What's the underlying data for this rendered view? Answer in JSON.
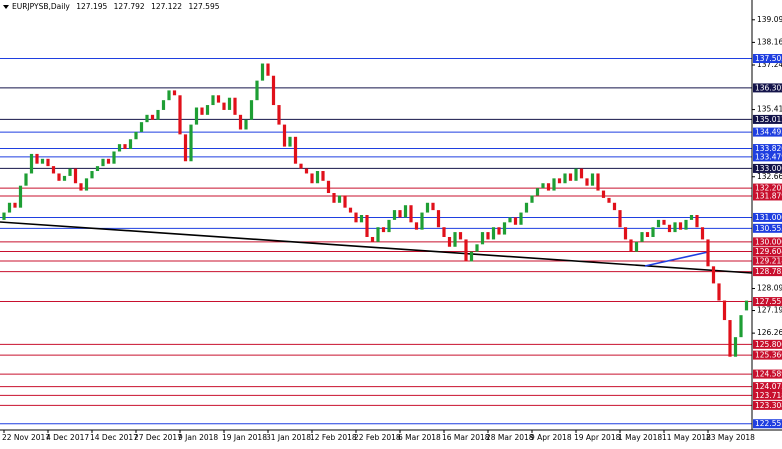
{
  "chart_data": {
    "type": "candlestick",
    "title": "EURJPYSB,Daily",
    "header_values": [
      127.195,
      127.792,
      127.122,
      127.595
    ],
    "up_color": "#1e9e34",
    "down_color": "#e0101a",
    "ylim": [
      122.3,
      139.9
    ],
    "yticks": [
      {
        "value": 139.09,
        "label": "139.090"
      },
      {
        "value": 138.165,
        "label": "138.165"
      },
      {
        "value": 137.24,
        "label": "137.240"
      },
      {
        "value": 135.415,
        "label": "135.415"
      },
      {
        "value": 132.665,
        "label": "132.665"
      },
      {
        "value": 128.09,
        "label": "128.090"
      },
      {
        "value": 127.19,
        "label": "127.190"
      },
      {
        "value": 126.265,
        "label": "126.265"
      }
    ],
    "levels": [
      {
        "value": 137.505,
        "label": "137.505",
        "color": "#1f3fe0"
      },
      {
        "value": 136.302,
        "label": "136.302",
        "color": "#14144a"
      },
      {
        "value": 135.012,
        "label": "135.012",
        "color": "#14144a"
      },
      {
        "value": 134.493,
        "label": "134.493",
        "color": "#1f3fe0"
      },
      {
        "value": 133.82,
        "label": "133.820",
        "color": "#1f3fe0"
      },
      {
        "value": 133.479,
        "label": "133.479",
        "color": "#1f3fe0"
      },
      {
        "value": 133.006,
        "label": "133.006",
        "color": "#14144a"
      },
      {
        "value": 132.202,
        "label": "132.202",
        "color": "#c8102e"
      },
      {
        "value": 131.879,
        "label": "131.879",
        "color": "#c8102e"
      },
      {
        "value": 131.0,
        "label": "131.000",
        "color": "#1f3fe0"
      },
      {
        "value": 130.555,
        "label": "130.555",
        "color": "#1f3fe0"
      },
      {
        "value": 130.0,
        "label": "130.000",
        "color": "#c8102e"
      },
      {
        "value": 129.604,
        "label": "129.604",
        "color": "#c8102e"
      },
      {
        "value": 129.218,
        "label": "129.218",
        "color": "#c8102e"
      },
      {
        "value": 128.783,
        "label": "128.783",
        "color": "#c8102e"
      },
      {
        "value": 127.557,
        "label": "127.557",
        "color": "#c8102e"
      },
      {
        "value": 125.806,
        "label": "125.806",
        "color": "#c8102e"
      },
      {
        "value": 125.366,
        "label": "125.366",
        "color": "#c8102e"
      },
      {
        "value": 124.589,
        "label": "124.589",
        "color": "#c8102e"
      },
      {
        "value": 124.075,
        "label": "124.075",
        "color": "#c8102e"
      },
      {
        "value": 123.718,
        "label": "123.718",
        "color": "#c8102e"
      },
      {
        "value": 123.308,
        "label": "123.308",
        "color": "#c8102e"
      },
      {
        "value": 122.557,
        "label": "122.557",
        "color": "#1f3fe0"
      }
    ],
    "categories": [
      "22 Nov 2017",
      null,
      null,
      null,
      null,
      null,
      null,
      null,
      "4 Dec 2017",
      null,
      null,
      null,
      null,
      null,
      null,
      null,
      "14 Dec 2017",
      null,
      null,
      null,
      null,
      null,
      null,
      null,
      "27 Dec 2017",
      null,
      null,
      null,
      null,
      null,
      null,
      null,
      "9 Jan 2018",
      null,
      null,
      null,
      null,
      null,
      null,
      null,
      "19 Jan 2018",
      null,
      null,
      null,
      null,
      null,
      null,
      null,
      "31 Jan 2018",
      null,
      null,
      null,
      null,
      null,
      null,
      null,
      "12 Feb 2018",
      null,
      null,
      null,
      null,
      null,
      null,
      null,
      "22 Feb 2018",
      null,
      null,
      null,
      null,
      null,
      null,
      null,
      "6 Mar 2018",
      null,
      null,
      null,
      null,
      null,
      null,
      null,
      "16 Mar 2018",
      null,
      null,
      null,
      null,
      null,
      null,
      null,
      "28 Mar 2018",
      null,
      null,
      null,
      null,
      null,
      null,
      null,
      "9 Apr 2018",
      null,
      null,
      null,
      null,
      null,
      null,
      null,
      "19 Apr 2018",
      null,
      null,
      null,
      null,
      null,
      null,
      null,
      "1 May 2018",
      null,
      null,
      null,
      null,
      null,
      null,
      null,
      "11 May 2018",
      null,
      null,
      null,
      null,
      null,
      null,
      null,
      "23 May 2018",
      null,
      null,
      null,
      null,
      null,
      null,
      null
    ],
    "open": [
      130.9,
      131.2,
      131.6,
      131.4,
      132.3,
      132.8,
      133.6,
      133.2,
      133.4,
      133.1,
      132.8,
      132.5,
      132.7,
      133.0,
      132.4,
      132.1,
      132.6,
      132.9,
      133.1,
      133.4,
      133.2,
      133.7,
      134.0,
      133.8,
      134.2,
      134.5,
      134.9,
      135.2,
      135.0,
      135.4,
      135.8,
      136.2,
      136.0,
      134.4,
      133.3,
      134.8,
      135.5,
      135.2,
      135.6,
      136.0,
      135.7,
      135.4,
      135.9,
      135.2,
      134.6,
      135.0,
      135.8,
      136.6,
      137.3,
      136.8,
      135.6,
      134.8,
      133.9,
      134.3,
      133.2,
      133.0,
      132.8,
      132.4,
      132.9,
      132.5,
      132.0,
      131.6,
      131.9,
      131.4,
      131.2,
      130.8,
      131.1,
      130.2,
      130.0,
      130.6,
      130.4,
      130.9,
      131.3,
      131.0,
      131.5,
      130.8,
      130.5,
      131.2,
      131.6,
      131.3,
      130.6,
      130.2,
      129.8,
      130.4,
      130.1,
      129.2,
      129.6,
      129.9,
      130.4,
      130.1,
      130.6,
      130.3,
      130.8,
      131.0,
      130.7,
      131.2,
      131.6,
      131.9,
      132.2,
      132.4,
      132.1,
      132.6,
      132.4,
      132.8,
      132.5,
      133.0,
      132.6,
      132.3,
      132.8,
      132.1,
      131.8,
      131.6,
      131.3,
      130.6,
      130.1,
      129.6,
      130.0,
      130.4,
      130.2,
      130.6,
      130.9,
      130.7,
      130.4,
      130.8,
      130.5,
      130.9,
      131.1,
      130.6,
      130.1,
      129.0,
      128.3,
      127.6,
      126.8,
      125.3,
      126.1,
      127.195
    ],
    "close": [
      131.2,
      131.6,
      131.4,
      132.3,
      132.8,
      133.6,
      133.2,
      133.4,
      133.1,
      132.8,
      132.5,
      132.7,
      133.0,
      132.4,
      132.1,
      132.6,
      132.9,
      133.1,
      133.4,
      133.2,
      133.7,
      134.0,
      133.8,
      134.2,
      134.5,
      134.9,
      135.2,
      135.0,
      135.4,
      135.8,
      136.2,
      136.0,
      134.4,
      133.3,
      134.8,
      135.5,
      135.2,
      135.6,
      136.0,
      135.7,
      135.4,
      135.9,
      135.2,
      134.6,
      135.0,
      135.8,
      136.6,
      137.3,
      136.8,
      135.6,
      134.8,
      133.9,
      134.3,
      133.2,
      133.0,
      132.8,
      132.4,
      132.9,
      132.5,
      132.0,
      131.6,
      131.9,
      131.4,
      131.2,
      130.8,
      131.1,
      130.2,
      130.0,
      130.6,
      130.4,
      130.9,
      131.3,
      131.0,
      131.5,
      130.8,
      130.5,
      131.2,
      131.6,
      131.3,
      130.6,
      130.2,
      129.8,
      130.4,
      130.1,
      129.2,
      129.6,
      129.9,
      130.4,
      130.1,
      130.6,
      130.3,
      130.8,
      131.0,
      130.7,
      131.2,
      131.6,
      131.9,
      132.2,
      132.4,
      132.1,
      132.6,
      132.4,
      132.8,
      132.5,
      133.0,
      132.6,
      132.3,
      132.8,
      132.1,
      131.8,
      131.6,
      131.3,
      130.6,
      130.1,
      129.6,
      130.0,
      130.4,
      130.2,
      130.6,
      130.9,
      130.7,
      130.4,
      130.8,
      130.5,
      130.9,
      131.1,
      130.6,
      130.1,
      129.0,
      128.3,
      127.6,
      126.8,
      125.3,
      126.1,
      127.0,
      127.595
    ]
  }
}
